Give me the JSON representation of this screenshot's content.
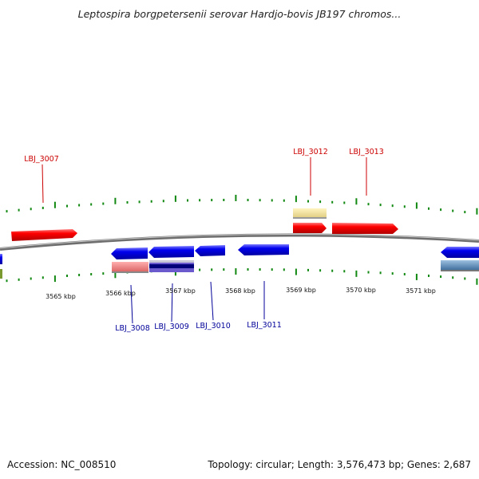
{
  "title": "Leptospira borgpetersenii serovar Hardjo-bovis JB197 chromos...",
  "footer": {
    "accession": "Accession: NC_008510",
    "summary": "Topology: circular; Length: 3,576,473 bp; Genes: 2,687"
  },
  "axis": {
    "ticks": [
      "3565 kbp",
      "3566 kbp",
      "3567 kbp",
      "3568 kbp",
      "3569 kbp",
      "3570 kbp",
      "3571 kbp"
    ]
  },
  "gene_labels_top": [
    {
      "name": "LBJ_3007"
    },
    {
      "name": "LBJ_3012"
    },
    {
      "name": "LBJ_3013"
    }
  ],
  "gene_labels_bottom": [
    {
      "name": "LBJ_3008"
    },
    {
      "name": "LBJ_3009"
    },
    {
      "name": "LBJ_3010"
    },
    {
      "name": "LBJ_3011"
    }
  ],
  "colors": {
    "forward": "#ff0000",
    "reverse": "#0000ee",
    "top_label": "#cc0000",
    "bottom_label": "#000099",
    "ticks": "#118811",
    "backbone": "#808080",
    "pink": "#f08080",
    "beige": "#f0e0a0",
    "steel": "#5a8ab8",
    "olive": "#7a9a30"
  }
}
